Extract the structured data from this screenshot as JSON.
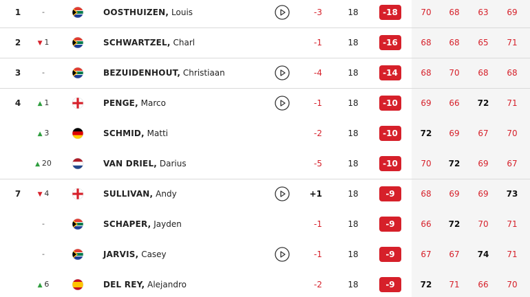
{
  "rows": [
    {
      "pos": "1",
      "move": "-",
      "move_dir": "same",
      "flag": "za",
      "surname": "OOSTHUIZEN,",
      "given": "Louis",
      "video": true,
      "today": "-3",
      "thru": "18",
      "total": "-18",
      "rounds": [
        "70",
        "68",
        "63",
        "69"
      ]
    },
    {
      "pos": "2",
      "move": "1",
      "move_dir": "down",
      "flag": "za",
      "surname": "SCHWARTZEL,",
      "given": "Charl",
      "video": false,
      "today": "-1",
      "thru": "18",
      "total": "-16",
      "rounds": [
        "68",
        "68",
        "65",
        "71"
      ]
    },
    {
      "pos": "3",
      "move": "-",
      "move_dir": "same",
      "flag": "za",
      "surname": "BEZUIDENHOUT,",
      "given": "Christiaan",
      "video": true,
      "today": "-4",
      "thru": "18",
      "total": "-14",
      "rounds": [
        "68",
        "70",
        "68",
        "68"
      ]
    },
    {
      "pos": "4",
      "move": "1",
      "move_dir": "up",
      "flag": "en",
      "surname": "PENGE,",
      "given": "Marco",
      "video": true,
      "today": "-1",
      "thru": "18",
      "total": "-10",
      "rounds": [
        "69",
        "66",
        "72",
        "71"
      ]
    },
    {
      "pos": null,
      "move": "3",
      "move_dir": "up",
      "flag": "de",
      "surname": "SCHMID,",
      "given": "Matti",
      "video": false,
      "today": "-2",
      "thru": "18",
      "total": "-10",
      "rounds": [
        "72",
        "69",
        "67",
        "70"
      ]
    },
    {
      "pos": null,
      "move": "20",
      "move_dir": "up",
      "flag": "nl",
      "surname": "VAN DRIEL,",
      "given": "Darius",
      "video": false,
      "today": "-5",
      "thru": "18",
      "total": "-10",
      "rounds": [
        "70",
        "72",
        "69",
        "67"
      ]
    },
    {
      "pos": "7",
      "move": "4",
      "move_dir": "down",
      "flag": "en",
      "surname": "SULLIVAN,",
      "given": "Andy",
      "video": true,
      "today": "+1",
      "thru": "18",
      "total": "-9",
      "rounds": [
        "68",
        "69",
        "69",
        "73"
      ]
    },
    {
      "pos": null,
      "move": "-",
      "move_dir": "same",
      "flag": "za",
      "surname": "SCHAPER,",
      "given": "Jayden",
      "video": false,
      "today": "-1",
      "thru": "18",
      "total": "-9",
      "rounds": [
        "66",
        "72",
        "70",
        "71"
      ]
    },
    {
      "pos": null,
      "move": "-",
      "move_dir": "same",
      "flag": "za",
      "surname": "JARVIS,",
      "given": "Casey",
      "video": true,
      "today": "-1",
      "thru": "18",
      "total": "-9",
      "rounds": [
        "67",
        "67",
        "74",
        "71"
      ]
    },
    {
      "pos": null,
      "move": "6",
      "move_dir": "up",
      "flag": "es",
      "surname": "DEL REY,",
      "given": "Alejandro",
      "video": false,
      "today": "-2",
      "thru": "18",
      "total": "-9",
      "rounds": [
        "72",
        "71",
        "66",
        "70"
      ]
    }
  ]
}
